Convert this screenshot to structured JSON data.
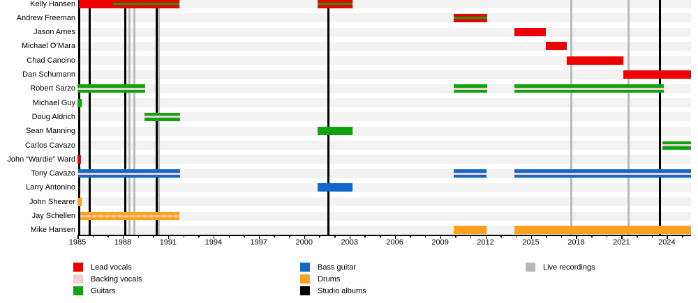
{
  "colors": {
    "lead_vocals": "#ee0000",
    "backing_vocals": "#f2cfcf",
    "guitars": "#0fa40f",
    "bass_guitar": "#1168c8",
    "drums": "#ffa11f",
    "studio_albums": "#000000",
    "live_recordings": "#b9b9b9",
    "row_band": "#f2f2f2",
    "axis": "#000000",
    "background": "#ffffff"
  },
  "chart_data": {
    "type": "timeline",
    "title": "",
    "x_axis": {
      "start_year": 1985,
      "end_year": 2025.6,
      "major_tick_interval": 3,
      "minor_tick_interval": 1,
      "tick_labels": [
        "1985",
        "1988",
        "1991",
        "1994",
        "1997",
        "2000",
        "2003",
        "2006",
        "2009",
        "2012",
        "2015",
        "2018",
        "2021",
        "2024"
      ]
    },
    "members": [
      {
        "name": "Kelly Hansen",
        "segments": [
          {
            "role": "lead_vocals",
            "start": 1985.1,
            "end": 1991.75,
            "stripe_role": "guitars",
            "stripe_start": 1987.35
          },
          {
            "role": "lead_vocals",
            "start": 2000.9,
            "end": 2003.2,
            "stripe_role": "guitars"
          }
        ]
      },
      {
        "name": "Andrew Freeman",
        "segments": [
          {
            "role": "lead_vocals",
            "start": 2009.9,
            "end": 2012.1,
            "stripe_role": "guitars"
          }
        ]
      },
      {
        "name": "Jason Ames",
        "segments": [
          {
            "role": "lead_vocals",
            "start": 2013.9,
            "end": 2016.0
          }
        ]
      },
      {
        "name": "Michael O’Mara",
        "segments": [
          {
            "role": "lead_vocals",
            "start": 2016.0,
            "end": 2017.4
          }
        ]
      },
      {
        "name": "Chad Cancino",
        "segments": [
          {
            "role": "lead_vocals",
            "start": 2017.4,
            "end": 2021.1
          }
        ]
      },
      {
        "name": "Dan Schumann",
        "segments": [
          {
            "role": "lead_vocals",
            "start": 2021.1,
            "end": 2025.6
          }
        ]
      },
      {
        "name": "Robert Sarzo",
        "segments": [
          {
            "role": "guitars",
            "start": 1985.0,
            "end": 1989.5,
            "stripe_role": "backing_vocals"
          },
          {
            "role": "guitars",
            "start": 2009.9,
            "end": 2012.1,
            "stripe_role": "backing_vocals"
          },
          {
            "role": "guitars",
            "start": 2013.9,
            "end": 2023.8,
            "stripe_role": "backing_vocals"
          }
        ]
      },
      {
        "name": "Michael Guy",
        "segments": [
          {
            "role": "guitars",
            "start": 1985.0,
            "end": 1985.3
          }
        ]
      },
      {
        "name": "Doug Aldrich",
        "segments": [
          {
            "role": "guitars",
            "start": 1989.45,
            "end": 1991.8,
            "stripe_role": "backing_vocals"
          }
        ]
      },
      {
        "name": "Sean Manning",
        "segments": [
          {
            "role": "guitars",
            "start": 2000.9,
            "end": 2003.2
          }
        ]
      },
      {
        "name": "Carlos Cavazo",
        "segments": [
          {
            "role": "guitars",
            "start": 2023.7,
            "end": 2025.6,
            "stripe_role": "backing_vocals"
          }
        ]
      },
      {
        "name": "John “Wardie” Ward",
        "segments": [
          {
            "role": "lead_vocals",
            "start": 1985.0,
            "end": 1985.25
          }
        ]
      },
      {
        "name": "Tony Cavazo",
        "segments": [
          {
            "role": "bass_guitar",
            "start": 1985.05,
            "end": 1991.8,
            "stripe_role": "backing_vocals"
          },
          {
            "role": "bass_guitar",
            "start": 2009.9,
            "end": 2012.05,
            "stripe_role": "backing_vocals"
          },
          {
            "role": "bass_guitar",
            "start": 2013.9,
            "end": 2025.6,
            "stripe_role": "backing_vocals"
          }
        ]
      },
      {
        "name": "Larry Antonino",
        "segments": [
          {
            "role": "bass_guitar",
            "start": 2000.9,
            "end": 2003.2
          }
        ]
      },
      {
        "name": "John Shearer",
        "segments": [
          {
            "role": "drums",
            "start": 1985.0,
            "end": 1985.3
          }
        ]
      },
      {
        "name": "Jay Schellen",
        "segments": [
          {
            "role": "drums",
            "start": 1985.2,
            "end": 1991.75,
            "stripe_role": "backing_vocals",
            "stripe_style": "dashed"
          }
        ]
      },
      {
        "name": "Mike Hansen",
        "segments": [
          {
            "role": "drums",
            "start": 2009.9,
            "end": 2012.05
          },
          {
            "role": "drums",
            "start": 2013.9,
            "end": 2025.6
          }
        ]
      }
    ],
    "events": {
      "studio_albums": {
        "label": "Studio albums",
        "years": [
          1985.1,
          1985.8,
          1988.15,
          1990.25,
          2001.6,
          2023.55
        ]
      },
      "live_recordings": {
        "label": "Live recordings",
        "years": [
          1988.45,
          1988.75,
          1990.4,
          2017.7,
          2021.45
        ]
      }
    }
  },
  "legend": {
    "columns": [
      [
        {
          "label": "Lead vocals",
          "role": "lead_vocals"
        },
        {
          "label": "Backing vocals",
          "role": "backing_vocals"
        },
        {
          "label": "Guitars",
          "role": "guitars"
        }
      ],
      [
        {
          "label": "Bass guitar",
          "role": "bass_guitar"
        },
        {
          "label": "Drums",
          "role": "drums"
        },
        {
          "label": "Studio albums",
          "role": "studio_albums"
        }
      ],
      [
        {
          "label": "Live recordings",
          "role": "live_recordings"
        }
      ]
    ]
  }
}
